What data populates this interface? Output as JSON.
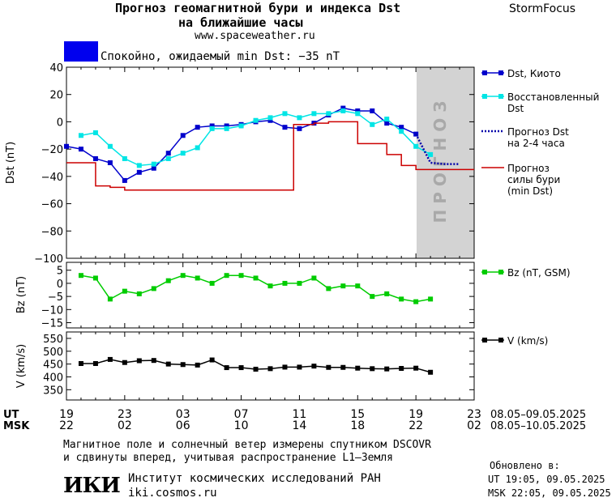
{
  "header": {
    "title_line1": "Прогноз геомагнитной бури и индекса Dst",
    "title_line2": "на ближайшие часы",
    "url": "www.spaceweather.ru",
    "brand": "StormFocus",
    "status_text": "Спокойно, ожидаемый min Dst: −35 nT",
    "status_color": "#0000ee"
  },
  "forecast_band_label": "П Р О Г Н О З",
  "time_axis": {
    "ut_label": "UT",
    "msk_label": "MSK",
    "ut_ticks": [
      "19",
      "23",
      "03",
      "07",
      "11",
      "15",
      "19",
      "23"
    ],
    "msk_ticks": [
      "22",
      "02",
      "06",
      "10",
      "14",
      "18",
      "22",
      "02"
    ],
    "ut_range": "08.05–09.05.2025",
    "msk_range": "08.05–10.05.2025"
  },
  "footer": {
    "note_line1": "Магнитное поле и солнечный ветер измерены спутником DSCOVR",
    "note_line2": "и сдвинуты вперед, учитывая распространение L1–Земля",
    "logo_text": "ИКИ",
    "institute": "Институт космических исследований РАН",
    "institute_url": "iki.cosmos.ru",
    "updated_label": "Обновлено в:",
    "updated_ut": "UT  19:05, 09.05.2025",
    "updated_msk": "MSK 22:05, 09.05.2025"
  },
  "chart_data": [
    {
      "type": "line",
      "ylabel": "Dst (nT)",
      "ylim": [
        -100,
        40
      ],
      "yticks": [
        40,
        20,
        0,
        -20,
        -40,
        -60,
        -80,
        -100
      ],
      "xlim_hours": [
        0,
        28
      ],
      "forecast_band_hours": [
        24,
        28
      ],
      "series": [
        {
          "name": "Dst, Киото",
          "color": "#0000cc",
          "marker": "square",
          "x": [
            0,
            1,
            2,
            3,
            4,
            5,
            6,
            7,
            8,
            9,
            10,
            11,
            12,
            13,
            14,
            15,
            16,
            17,
            18,
            19,
            20,
            21,
            22,
            23,
            24
          ],
          "y": [
            -18,
            -20,
            -27,
            -30,
            -43,
            -37,
            -34,
            -23,
            -10,
            -4,
            -3,
            -3,
            -2,
            0,
            1,
            -4,
            -5,
            -1,
            5,
            10,
            8,
            8,
            -1,
            -4,
            -9
          ]
        },
        {
          "name": "Восстановленный Dst",
          "color": "#00e5e5",
          "marker": "square",
          "x": [
            1,
            2,
            3,
            4,
            5,
            6,
            7,
            8,
            9,
            10,
            11,
            12,
            13,
            14,
            15,
            16,
            17,
            18,
            19,
            20,
            21,
            22,
            23,
            24,
            25
          ],
          "y": [
            -10,
            -8,
            -18,
            -27,
            -32,
            -31,
            -27,
            -23,
            -19,
            -5,
            -5,
            -3,
            1,
            3,
            6,
            3,
            6,
            6,
            8,
            6,
            -2,
            2,
            -7,
            -18,
            -24
          ]
        },
        {
          "name": "Прогноз Dst на 2-4 часа",
          "color": "#0000aa",
          "style": "dotted",
          "x": [
            24,
            25,
            26,
            27
          ],
          "y": [
            -9,
            -30,
            -31,
            -31
          ]
        },
        {
          "name": "Прогноз силы бури (min Dst)",
          "color": "#cc0000",
          "style": "step",
          "x": [
            0,
            1,
            2,
            3,
            4,
            5,
            6,
            7,
            8,
            9,
            10,
            11,
            12,
            13,
            14,
            15,
            15.6,
            16,
            17,
            18,
            19,
            20,
            21,
            22,
            23,
            24,
            25,
            26,
            27,
            28
          ],
          "y": [
            -30,
            -30,
            -47,
            -48,
            -50,
            -50,
            -50,
            -50,
            -50,
            -50,
            -50,
            -50,
            -50,
            -50,
            -50,
            -50,
            -2,
            -2,
            -1,
            0,
            0,
            -16,
            -16,
            -24,
            -32,
            -35,
            -35,
            -35,
            -35,
            -35
          ]
        }
      ]
    },
    {
      "type": "line",
      "ylabel": "Bz (nT)",
      "ylim": [
        -17,
        8
      ],
      "yticks": [
        5,
        0,
        -5,
        -10,
        -15
      ],
      "xlim_hours": [
        0,
        28
      ],
      "series": [
        {
          "name": "Bz (nT, GSM)",
          "color": "#00cc00",
          "marker": "square",
          "x": [
            1,
            2,
            3,
            4,
            5,
            6,
            7,
            8,
            9,
            10,
            11,
            12,
            13,
            14,
            15,
            16,
            17,
            18,
            19,
            20,
            21,
            22,
            23,
            24,
            25
          ],
          "y": [
            3,
            2,
            -6,
            -3,
            -4,
            -2,
            1,
            3,
            2,
            0,
            3,
            3,
            2,
            -1,
            0,
            0,
            2,
            -2,
            -1,
            -1,
            -5,
            -4,
            -6,
            -7,
            -6
          ]
        }
      ]
    },
    {
      "type": "line",
      "ylabel": "V (km/s)",
      "ylim": [
        310,
        575
      ],
      "yticks": [
        550,
        500,
        450,
        400,
        350
      ],
      "xlim_hours": [
        0,
        28
      ],
      "series": [
        {
          "name": "V (km/s)",
          "color": "#000000",
          "marker": "square",
          "x": [
            1,
            2,
            3,
            4,
            5,
            6,
            7,
            8,
            9,
            10,
            11,
            12,
            13,
            14,
            15,
            16,
            17,
            18,
            19,
            20,
            21,
            22,
            23,
            24,
            25
          ],
          "y": [
            452,
            452,
            468,
            456,
            463,
            464,
            450,
            448,
            446,
            466,
            436,
            436,
            430,
            432,
            438,
            438,
            442,
            437,
            437,
            434,
            432,
            431,
            433,
            434,
            418
          ]
        }
      ]
    }
  ]
}
